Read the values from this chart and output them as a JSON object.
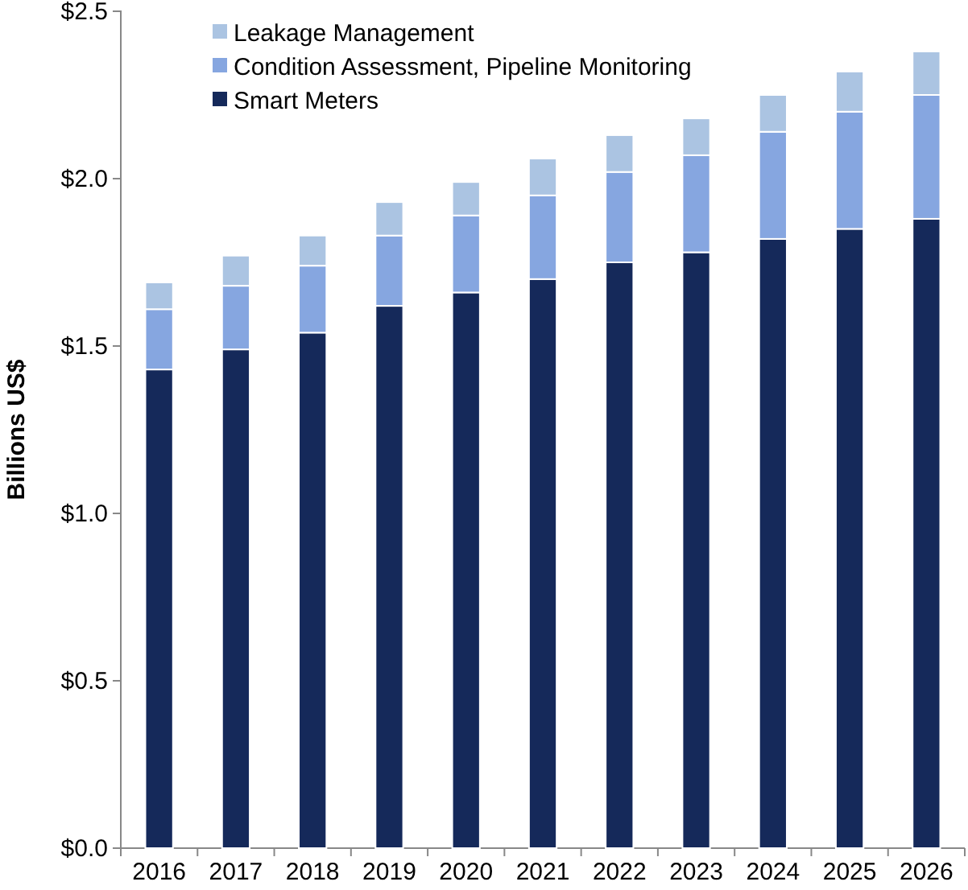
{
  "chart_data": {
    "type": "bar",
    "stacked": true,
    "ylabel": "Billions US$",
    "categories": [
      "2016",
      "2017",
      "2018",
      "2019",
      "2020",
      "2021",
      "2022",
      "2023",
      "2024",
      "2025",
      "2026"
    ],
    "series": [
      {
        "name": "Smart Meters",
        "color": "#15295a",
        "values": [
          1.43,
          1.49,
          1.54,
          1.62,
          1.66,
          1.7,
          1.75,
          1.78,
          1.82,
          1.85,
          1.88
        ]
      },
      {
        "name": "Condition Assessment, Pipeline Monitoring",
        "color": "#86a6e0",
        "values": [
          0.18,
          0.19,
          0.2,
          0.21,
          0.23,
          0.25,
          0.27,
          0.29,
          0.32,
          0.35,
          0.37
        ]
      },
      {
        "name": "Leakage Management",
        "color": "#abc4e2",
        "values": [
          0.08,
          0.09,
          0.09,
          0.1,
          0.1,
          0.11,
          0.11,
          0.11,
          0.11,
          0.12,
          0.13
        ]
      }
    ],
    "ylim": [
      0,
      2.5
    ],
    "yticks": [
      {
        "value": 0,
        "label": "$0.0"
      },
      {
        "value": 0.5,
        "label": "$0.5"
      },
      {
        "value": 1,
        "label": "$1.0"
      },
      {
        "value": 1.5,
        "label": "$1.5"
      },
      {
        "value": 2,
        "label": "$2.0"
      },
      {
        "value": 2.5,
        "label": "$2.5"
      }
    ],
    "grid": false,
    "legend": "top left"
  }
}
